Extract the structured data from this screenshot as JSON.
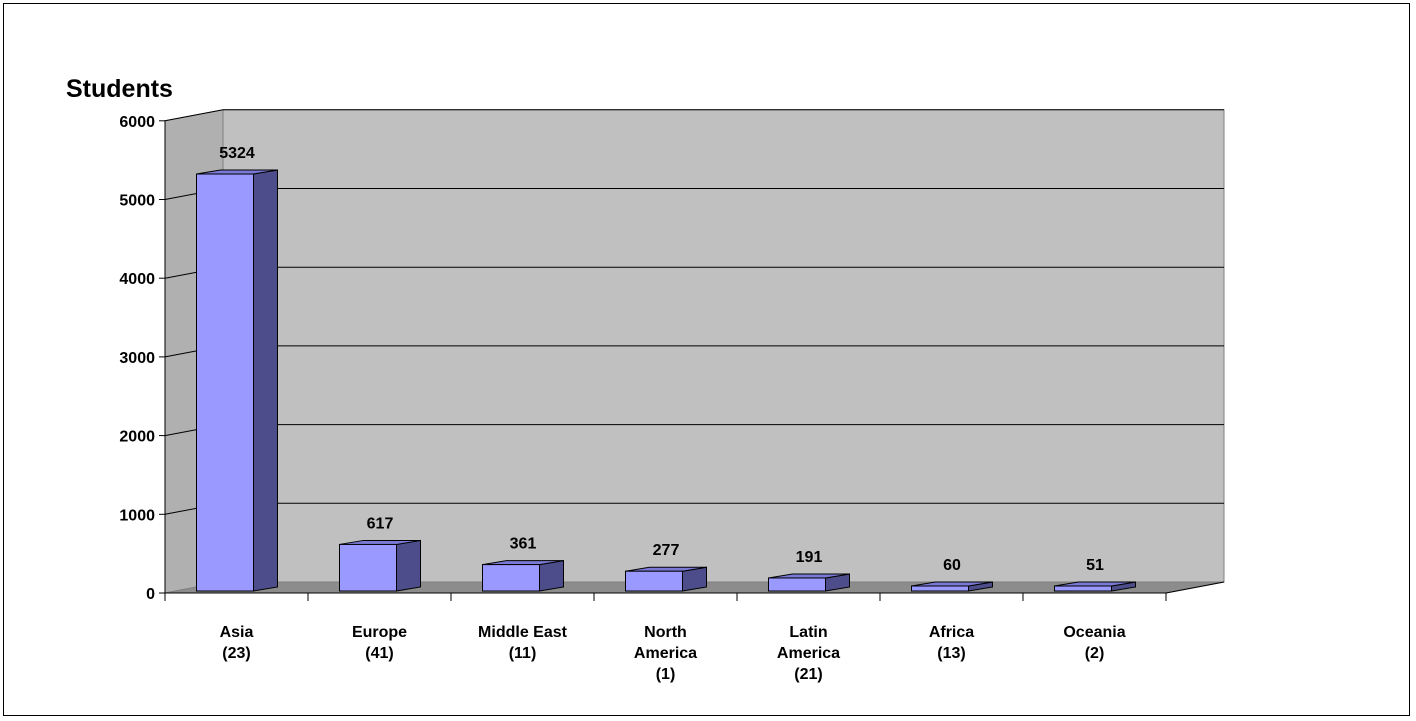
{
  "chart_data": {
    "type": "bar",
    "style": "3d-column",
    "ylabel": "Students",
    "ylim": [
      0,
      6000
    ],
    "yticks": [
      0,
      1000,
      2000,
      3000,
      4000,
      5000,
      6000
    ],
    "grid": true,
    "categories": [
      [
        "Asia",
        "(23)"
      ],
      [
        "Europe",
        "(41)"
      ],
      [
        "Middle East",
        "(11)"
      ],
      [
        "North",
        "America",
        "(1)"
      ],
      [
        "Latin",
        "America",
        "(21)"
      ],
      [
        "Africa",
        "(13)"
      ],
      [
        "Oceania",
        "(2)"
      ]
    ],
    "values": [
      5324,
      617,
      361,
      277,
      191,
      60,
      51
    ],
    "data_labels": [
      "5324",
      "617",
      "361",
      "277",
      "191",
      "60",
      "51"
    ],
    "colors": {
      "bar_front": "#9999ff",
      "bar_side": "#4d4d8c",
      "bar_top": "#7a7ad6",
      "back_wall": "#c0c0c0",
      "side_wall": "#b0b0b0",
      "floor": "#8c8c8c",
      "gridline": "#000000"
    }
  }
}
